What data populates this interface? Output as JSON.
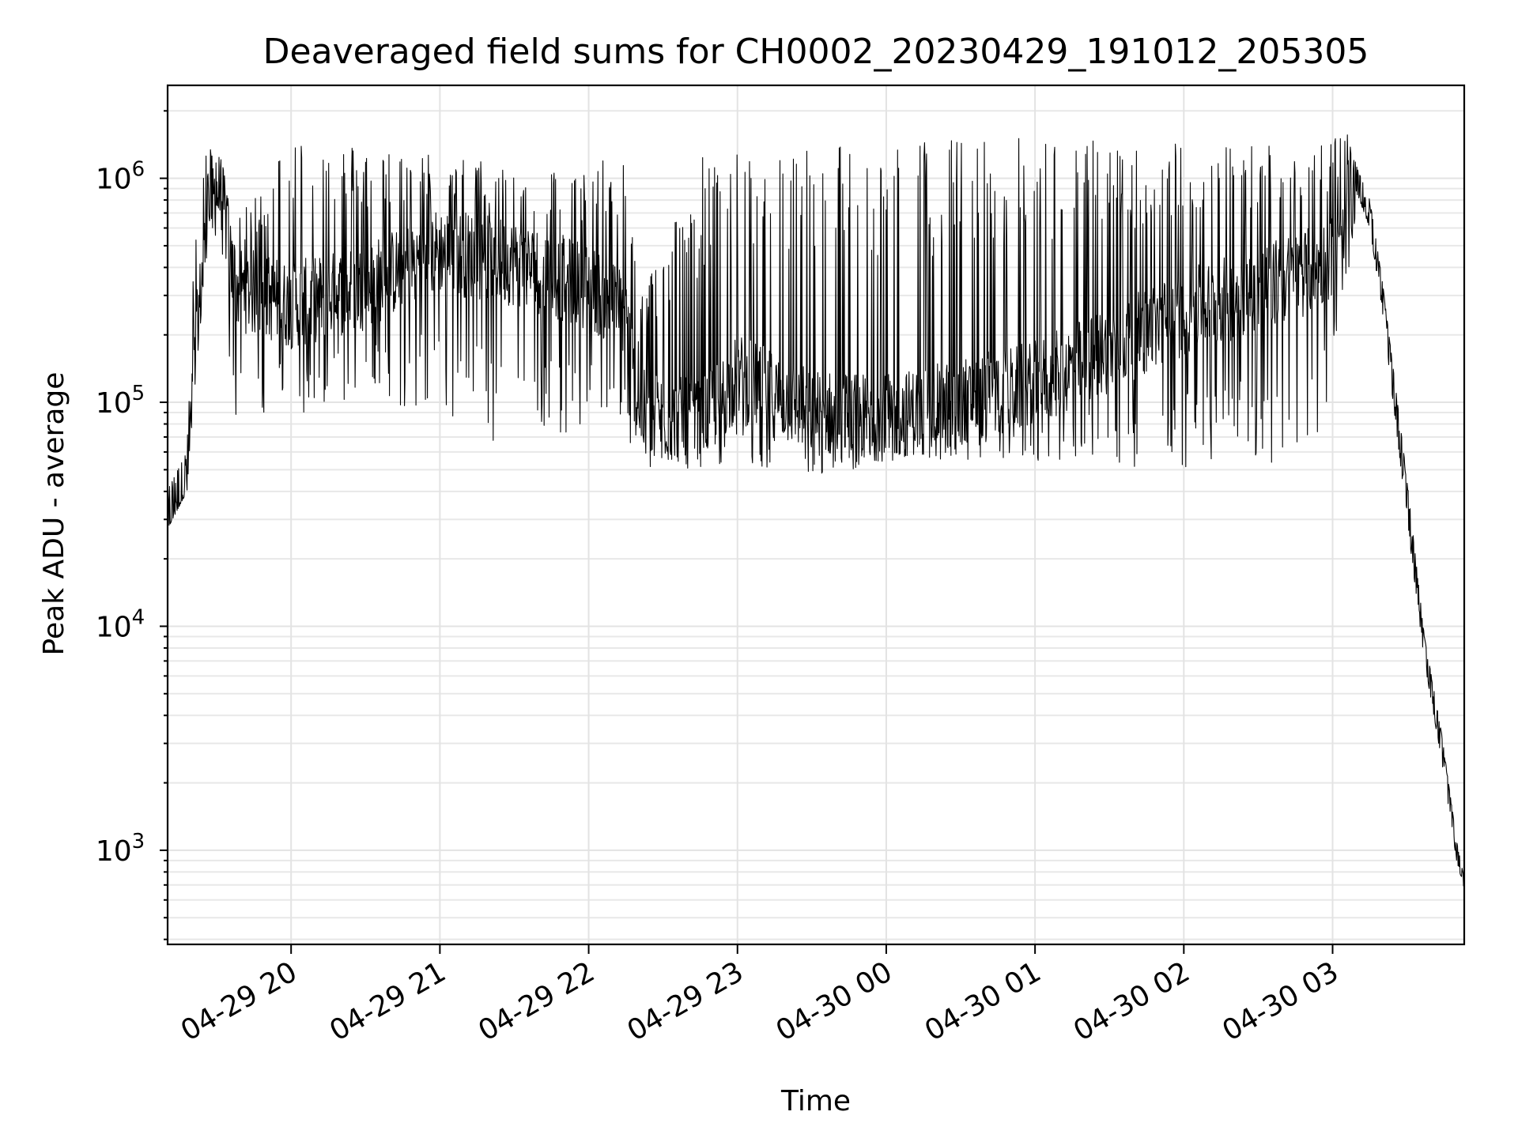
{
  "chart_data": {
    "type": "line",
    "title": "Deaveraged field sums for CH0002_20230429_191012_205305",
    "xlabel": "Time",
    "ylabel": "Peak ADU - average",
    "yscale": "log",
    "ylim": [
      380,
      2600000
    ],
    "xlim": [
      "2023-04-29 19:10:12",
      "2023-04-30 03:53:05"
    ],
    "grid": true,
    "x_ticks": [
      {
        "t": "2023-04-29 20:00",
        "label": "04-29 20"
      },
      {
        "t": "2023-04-29 21:00",
        "label": "04-29 21"
      },
      {
        "t": "2023-04-29 22:00",
        "label": "04-29 22"
      },
      {
        "t": "2023-04-29 23:00",
        "label": "04-29 23"
      },
      {
        "t": "2023-04-30 00:00",
        "label": "04-30 00"
      },
      {
        "t": "2023-04-30 01:00",
        "label": "04-30 01"
      },
      {
        "t": "2023-04-30 02:00",
        "label": "04-30 02"
      },
      {
        "t": "2023-04-30 03:00",
        "label": "04-30 03"
      }
    ],
    "y_ticks": [
      {
        "value": 1000,
        "base": "10",
        "exp": "3"
      },
      {
        "value": 10000,
        "base": "10",
        "exp": "4"
      },
      {
        "value": 100000,
        "base": "10",
        "exp": "5"
      },
      {
        "value": 1000000,
        "base": "10",
        "exp": "6"
      }
    ],
    "series": [
      {
        "color": "#000000",
        "envelope": [
          {
            "t": "2023-04-29 19:10",
            "base": 30000,
            "high": 40000,
            "low": 27000
          },
          {
            "t": "2023-04-29 19:18",
            "base": 45000,
            "high": 60000,
            "low": 40000
          },
          {
            "t": "2023-04-29 19:22",
            "base": 200000,
            "high": 1100000,
            "low": 150000
          },
          {
            "t": "2023-04-29 19:27",
            "base": 800000,
            "high": 1400000,
            "low": 600000
          },
          {
            "t": "2023-04-29 19:32",
            "base": 900000,
            "high": 1200000,
            "low": 500000
          },
          {
            "t": "2023-04-29 19:37",
            "base": 330000,
            "high": 600000,
            "low": 75000
          },
          {
            "t": "2023-04-29 20:00",
            "base": 270000,
            "high": 1650000,
            "low": 80000
          },
          {
            "t": "2023-04-29 20:30",
            "base": 330000,
            "high": 1400000,
            "low": 100000
          },
          {
            "t": "2023-04-29 21:00",
            "base": 480000,
            "high": 1300000,
            "low": 90000
          },
          {
            "t": "2023-04-29 21:30",
            "base": 420000,
            "high": 1150000,
            "low": 60000
          },
          {
            "t": "2023-04-29 22:00",
            "base": 330000,
            "high": 1100000,
            "low": 80000
          },
          {
            "t": "2023-04-29 22:15",
            "base": 250000,
            "high": 1400000,
            "low": 70000
          },
          {
            "t": "2023-04-29 22:20",
            "base": 90000,
            "high": 300000,
            "low": 50000
          },
          {
            "t": "2023-04-29 22:45",
            "base": 80000,
            "high": 1300000,
            "low": 50000
          },
          {
            "t": "2023-04-29 23:00",
            "base": 130000,
            "high": 1300000,
            "low": 55000
          },
          {
            "t": "2023-04-29 23:30",
            "base": 90000,
            "high": 1500000,
            "low": 45000
          },
          {
            "t": "2023-04-30 00:00",
            "base": 85000,
            "high": 1550000,
            "low": 55000
          },
          {
            "t": "2023-04-30 01:00",
            "base": 120000,
            "high": 1550000,
            "low": 55000
          },
          {
            "t": "2023-04-30 02:00",
            "base": 250000,
            "high": 1450000,
            "low": 50000
          },
          {
            "t": "2023-04-30 02:55",
            "base": 400000,
            "high": 1500000,
            "low": 55000
          },
          {
            "t": "2023-04-30 03:05",
            "base": 500000,
            "high": 1700000,
            "low": 250000
          },
          {
            "t": "2023-04-30 03:10",
            "base": 950000,
            "high": 1100000,
            "low": 850000
          },
          {
            "t": "2023-04-30 03:15",
            "base": 700000,
            "high": 800000,
            "low": 600000
          },
          {
            "t": "2023-04-30 03:20",
            "base": 300000,
            "high": 350000,
            "low": 260000
          },
          {
            "t": "2023-04-30 03:30",
            "base": 40000,
            "high": 45000,
            "low": 30000
          },
          {
            "t": "2023-04-30 03:37",
            "base": 8000,
            "high": 9000,
            "low": 7000
          },
          {
            "t": "2023-04-30 03:44",
            "base": 3000,
            "high": 3300,
            "low": 2500
          },
          {
            "t": "2023-04-30 03:50",
            "base": 1000,
            "high": 1100,
            "low": 900
          },
          {
            "t": "2023-04-30 03:53",
            "base": 700,
            "high": 750,
            "low": 680
          }
        ]
      }
    ]
  }
}
